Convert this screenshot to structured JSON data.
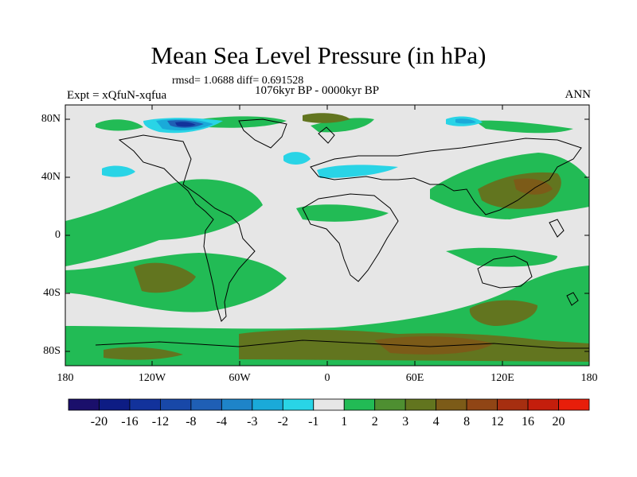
{
  "title": "Mean Sea Level Pressure (in hPa)",
  "stats": "rmsd= 1.0688 diff= 0.691528",
  "period": "1076kyr BP - 0000kyr BP",
  "experiment": "Expt = xQfuN-xqfua",
  "season": "ANN",
  "lat_labels": [
    "80N",
    "40N",
    "0",
    "40S",
    "80S"
  ],
  "lon_labels": [
    "180",
    "120W",
    "60W",
    "0",
    "60E",
    "120E",
    "180"
  ],
  "colorbar": {
    "labels": [
      "-20",
      "-16",
      "-12",
      "-8",
      "-4",
      "-3",
      "-2",
      "-1",
      "1",
      "2",
      "3",
      "4",
      "8",
      "12",
      "16",
      "20"
    ],
    "colors": [
      "#1a0f6b",
      "#0d1c84",
      "#12329b",
      "#1848a8",
      "#1f5fb5",
      "#1e84c9",
      "#1aaad9",
      "#29d4e6",
      "#e6e6e6",
      "#22bb55",
      "#4e8f31",
      "#62751f",
      "#7c5b18",
      "#904515",
      "#a62e10",
      "#c41e0c",
      "#e81e0a"
    ]
  }
}
